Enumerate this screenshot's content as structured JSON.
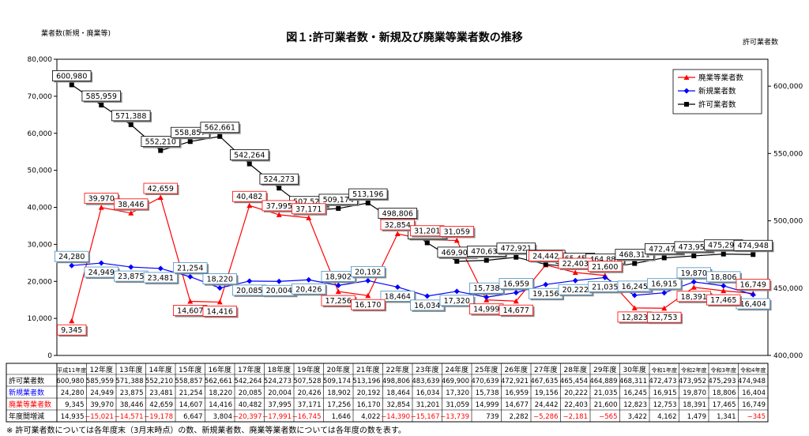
{
  "title": "図１:許可業者数・新規及び廃業等業者数の推移",
  "left_axis_label": "業者数(新規・廃業等)",
  "right_axis_label": "許可業者数",
  "footnote": "※ 許可業者数については各年度末（3月末時点）の数、新規業者数、廃業等業者数については各年度の数を表す。",
  "chart_data": {
    "type": "line",
    "categories": [
      "平成11年度",
      "12年度",
      "13年度",
      "14年度",
      "15年度",
      "16年度",
      "17年度",
      "18年度",
      "19年度",
      "20年度",
      "21年度",
      "22年度",
      "23年度",
      "24年度",
      "25年度",
      "26年度",
      "27年度",
      "28年度",
      "29年度",
      "30年度",
      "令和1年度",
      "令和2年度",
      "令和3年度",
      "令和4年度"
    ],
    "left_axis": {
      "min": 0,
      "max": 80000,
      "ticks": [
        0,
        10000,
        20000,
        30000,
        40000,
        50000,
        60000,
        70000,
        80000
      ],
      "tick_labels": [
        "0",
        "10,000",
        "20,000",
        "30,000",
        "40,000",
        "50,000",
        "60,000",
        "70,000",
        "80,000"
      ]
    },
    "right_axis": {
      "min": 400000,
      "max": 620000,
      "ticks": [
        400000,
        450000,
        500000,
        550000,
        600000
      ],
      "tick_labels": [
        "400,000",
        "450,000",
        "500,000",
        "550,000",
        "600,000"
      ]
    },
    "legend_position": "top-right",
    "series": [
      {
        "name": "廃業等業者数",
        "axis": "left",
        "color": "#ff0000",
        "marker": "triangle",
        "values": [
          9345,
          39970,
          38446,
          42659,
          14607,
          14416,
          40482,
          37995,
          37171,
          17256,
          16170,
          32854,
          31201,
          31059,
          14999,
          14677,
          24442,
          22403,
          21600,
          12823,
          12753,
          18391,
          17465,
          16749
        ],
        "labels": [
          "9,345",
          "39,970",
          "38,446",
          "42,659",
          "14,607",
          "14,416",
          "40,482",
          "37,995",
          "37,171",
          "17,256",
          "16,170",
          "32,854",
          "31,201",
          "31,059",
          "14,999",
          "14,677",
          "24,442",
          "22,403",
          "21,600",
          "12,823",
          "12,753",
          "18,391",
          "17,465",
          "16,749"
        ]
      },
      {
        "name": "新規業者数",
        "axis": "left",
        "color": "#0000ff",
        "marker": "diamond",
        "values": [
          24280,
          24949,
          23875,
          23481,
          21254,
          18220,
          20085,
          20004,
          20426,
          18902,
          20192,
          18464,
          16034,
          17320,
          15738,
          16959,
          19156,
          20222,
          21035,
          16245,
          16915,
          19870,
          18806,
          16404
        ],
        "labels": [
          "24,280",
          "24,949",
          "23,875",
          "23,481",
          "21,254",
          "18,220",
          "20,085",
          "20,004",
          "20,426",
          "18,902",
          "20,192",
          "18,464",
          "16,034",
          "17,320",
          "15,738",
          "16,959",
          "19,156",
          "20,222",
          "21,035",
          "16,245",
          "16,915",
          "19,870",
          "18,806",
          "16,404"
        ]
      },
      {
        "name": "許可業者数",
        "axis": "right",
        "color": "#000000",
        "marker": "square",
        "values": [
          600980,
          585959,
          571388,
          552210,
          558857,
          562661,
          542264,
          524273,
          507528,
          509174,
          513196,
          498806,
          483639,
          469900,
          470639,
          472921,
          467635,
          465454,
          464889,
          468311,
          472473,
          473952,
          475293,
          474948
        ],
        "labels": [
          "600,980",
          "585,959",
          "571,388",
          "552,210",
          "558,857",
          "562,661",
          "542,264",
          "524,273",
          "507,528",
          "509,174",
          "513,196",
          "498,806",
          "483,639",
          "469,900",
          "470,639",
          "472,921",
          "467,635",
          "465,454",
          "464,889",
          "468,311",
          "472,473",
          "473,952",
          "475,293",
          "474,948"
        ]
      }
    ]
  },
  "table": {
    "rows": [
      {
        "name": "許可業者数",
        "color": "#000000",
        "cells": [
          "600,980",
          "585,959",
          "571,388",
          "552,210",
          "558,857",
          "562,661",
          "542,264",
          "524,273",
          "507,528",
          "509,174",
          "513,196",
          "498,806",
          "483,639",
          "469,900",
          "470,639",
          "472,921",
          "467,635",
          "465,454",
          "464,889",
          "468,311",
          "472,473",
          "473,952",
          "475,293",
          "474,948"
        ]
      },
      {
        "name": "新規業者数",
        "color": "#0000ff",
        "cells": [
          "24,280",
          "24,949",
          "23,875",
          "23,481",
          "21,254",
          "18,220",
          "20,085",
          "20,004",
          "20,426",
          "18,902",
          "20,192",
          "18,464",
          "16,034",
          "17,320",
          "15,738",
          "16,959",
          "19,156",
          "20,222",
          "21,035",
          "16,245",
          "16,915",
          "19,870",
          "18,806",
          "16,404"
        ]
      },
      {
        "name": "廃業等業者数",
        "color": "#ff0000",
        "cells": [
          "9,345",
          "39,970",
          "38,446",
          "42,659",
          "14,607",
          "14,416",
          "40,482",
          "37,995",
          "37,171",
          "17,256",
          "16,170",
          "32,854",
          "31,201",
          "31,059",
          "14,999",
          "14,677",
          "24,442",
          "22,403",
          "21,600",
          "12,823",
          "12,753",
          "18,391",
          "17,465",
          "16,749"
        ]
      },
      {
        "name": "年度間増減",
        "color": "#000000",
        "cells": [
          "14,935",
          "−15,021",
          "−14,571",
          "−19,178",
          "6,647",
          "3,804",
          "−20,397",
          "−17,991",
          "−16,745",
          "1,646",
          "4,022",
          "−14,390",
          "−15,167",
          "−13,739",
          "739",
          "2,282",
          "−5,286",
          "−2,181",
          "−565",
          "3,422",
          "4,162",
          "1,479",
          "1,341",
          "−345"
        ]
      }
    ]
  }
}
